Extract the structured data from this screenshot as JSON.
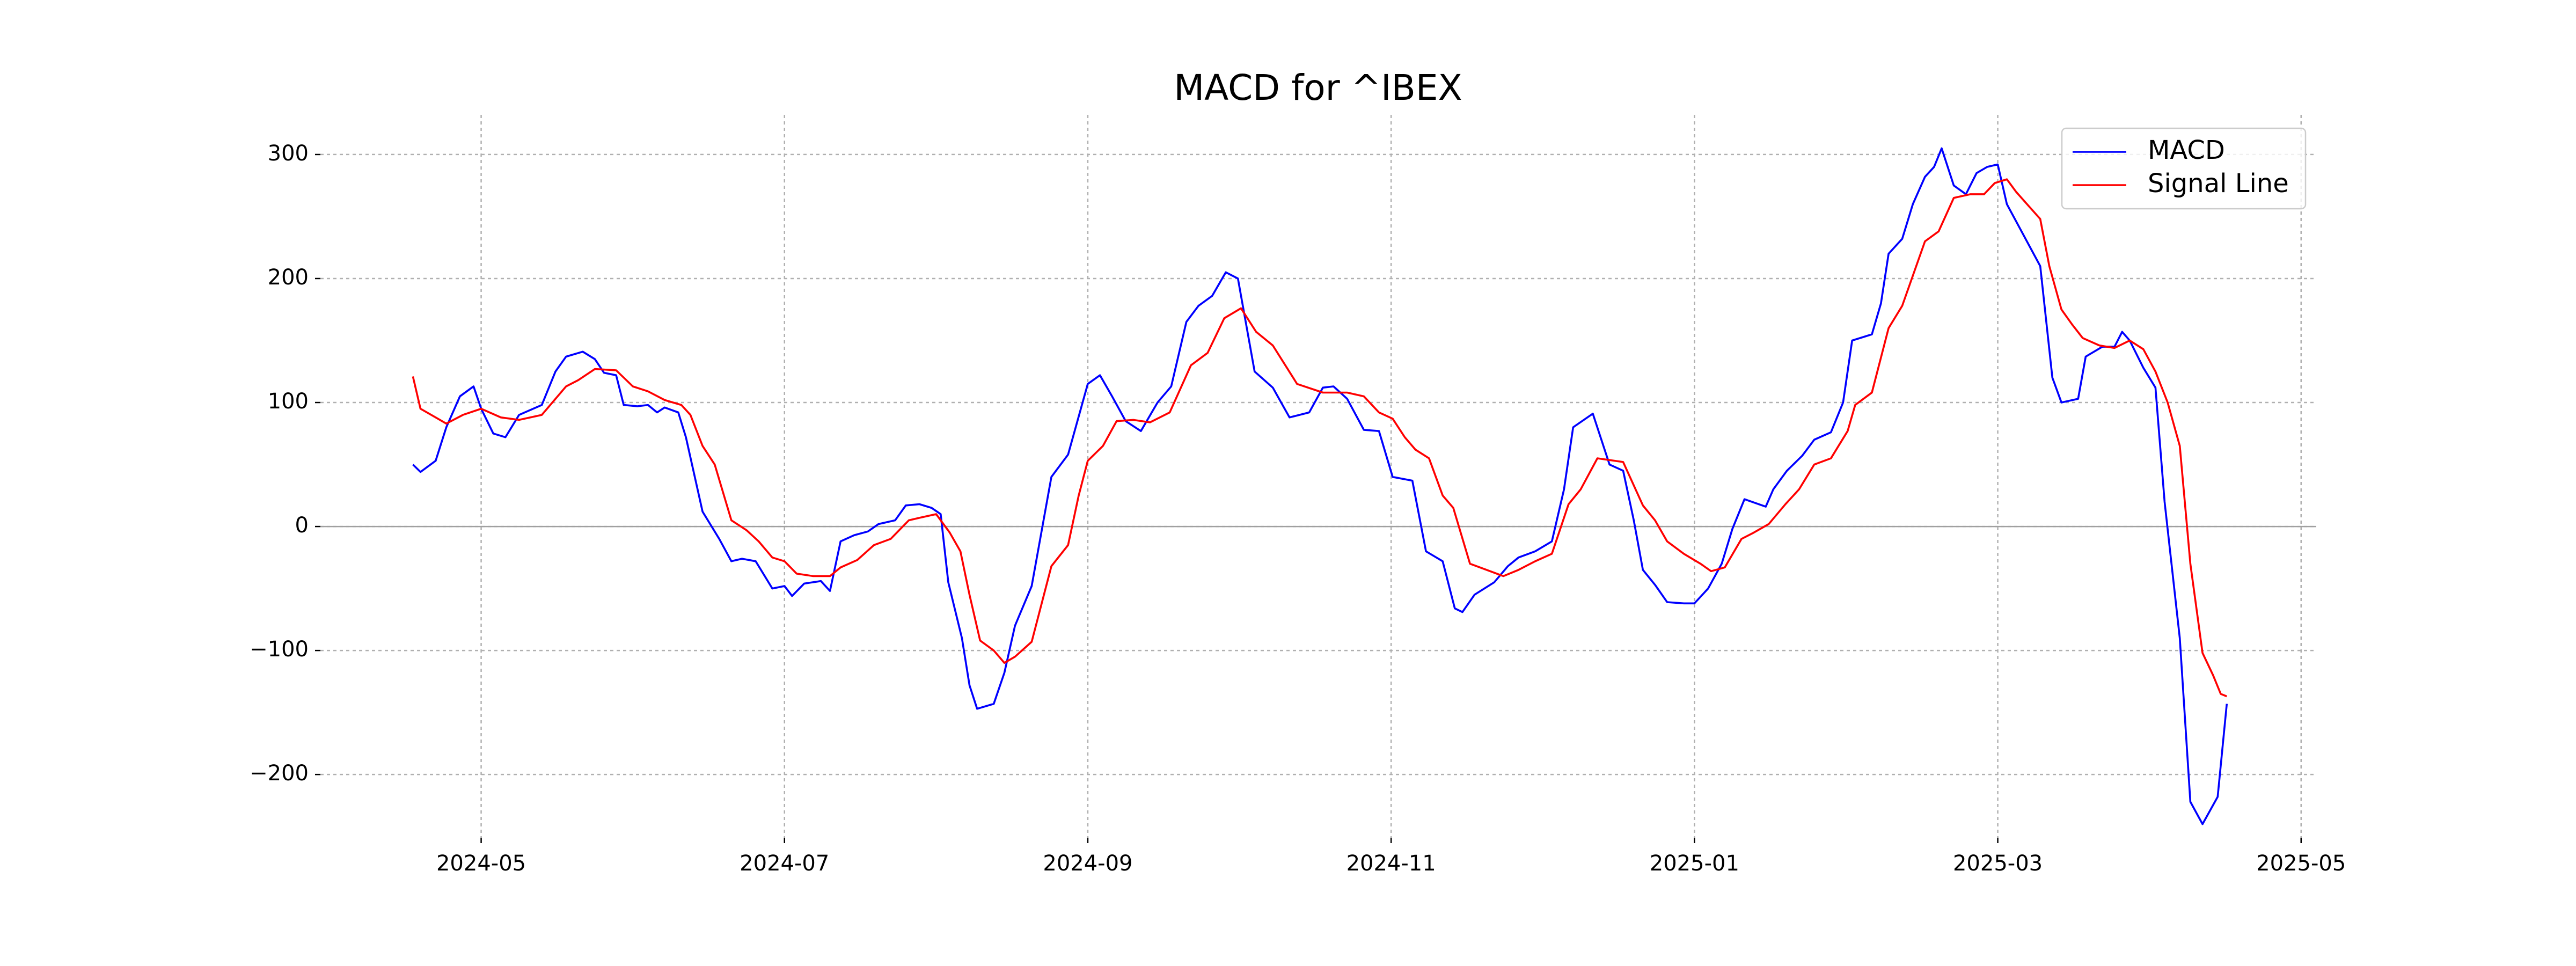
{
  "chart_data": {
    "type": "line",
    "title": "MACD for ^IBEX",
    "xlim": [
      2.94,
      16.1
    ],
    "xticks": [
      {
        "value": 4,
        "label": "2024-05"
      },
      {
        "value": 6,
        "label": "2024-07"
      },
      {
        "value": 8,
        "label": "2024-09"
      },
      {
        "value": 10,
        "label": "2024-11"
      },
      {
        "value": 12,
        "label": "2025-01"
      },
      {
        "value": 14,
        "label": "2025-03"
      },
      {
        "value": 16,
        "label": "2025-05"
      }
    ],
    "ylim": [
      -251,
      332
    ],
    "yticks": [
      {
        "value": -200,
        "label": "−200"
      },
      {
        "value": -100,
        "label": "−100"
      },
      0,
      100,
      200,
      300
    ],
    "grid": true,
    "legend": "upper right",
    "series": [
      {
        "name": "MACD",
        "color": "#0000ff",
        "x": [
          3.55,
          3.6,
          3.7,
          3.77,
          3.86,
          3.95,
          4.0,
          4.08,
          4.16,
          4.25,
          4.4,
          4.49,
          4.56,
          4.67,
          4.75,
          4.81,
          4.89,
          4.94,
          5.03,
          5.1,
          5.16,
          5.21,
          5.3,
          5.35,
          5.46,
          5.57,
          5.65,
          5.72,
          5.81,
          5.92,
          6.0,
          6.05,
          6.13,
          6.24,
          6.3,
          6.37,
          6.46,
          6.55,
          6.62,
          6.73,
          6.8,
          6.89,
          6.97,
          7.03,
          7.08,
          7.17,
          7.22,
          7.27,
          7.38,
          7.45,
          7.52,
          7.63,
          7.76,
          7.87,
          8.0,
          8.08,
          8.16,
          8.25,
          8.35,
          8.46,
          8.55,
          8.65,
          8.73,
          8.82,
          8.91,
          8.99,
          9.1,
          9.22,
          9.33,
          9.46,
          9.55,
          9.62,
          9.71,
          9.82,
          9.92,
          10.01,
          10.14,
          10.23,
          10.34,
          10.42,
          10.47,
          10.55,
          10.68,
          10.77,
          10.84,
          10.95,
          11.06,
          11.14,
          11.2,
          11.33,
          11.44,
          11.53,
          11.6,
          11.66,
          11.74,
          11.82,
          11.93,
          12.0,
          12.09,
          12.18,
          12.25,
          12.33,
          12.47,
          12.52,
          12.61,
          12.71,
          12.79,
          12.9,
          12.98,
          13.04,
          13.17,
          13.23,
          13.28,
          13.37,
          13.44,
          13.52,
          13.58,
          13.63,
          13.71,
          13.79,
          13.86,
          13.93,
          14.0,
          14.06,
          14.17,
          14.28,
          14.36,
          14.42,
          14.53,
          14.58,
          14.69,
          14.77,
          14.82,
          14.87,
          14.96,
          15.04,
          15.1,
          15.2,
          15.27,
          15.35,
          15.45,
          15.51
        ],
        "values": [
          50,
          44,
          53,
          80,
          105,
          113,
          95,
          75,
          72,
          90,
          98,
          125,
          137,
          141,
          135,
          124,
          122,
          98,
          97,
          98,
          92,
          96,
          92,
          72,
          12,
          -10,
          -28,
          -26,
          -28,
          -50,
          -48,
          -56,
          -46,
          -44,
          -52,
          -12,
          -7,
          -4,
          2,
          5,
          17,
          18,
          15,
          10,
          -45,
          -90,
          -128,
          -147,
          -143,
          -118,
          -80,
          -48,
          40,
          58,
          115,
          122,
          105,
          85,
          77,
          100,
          113,
          165,
          178,
          186,
          205,
          200,
          125,
          112,
          88,
          92,
          112,
          113,
          103,
          78,
          77,
          40,
          37,
          -20,
          -28,
          -66,
          -69,
          -55,
          -45,
          -32,
          -25,
          -20,
          -12,
          30,
          80,
          91,
          50,
          45,
          5,
          -35,
          -47,
          -61,
          -62,
          -62,
          -50,
          -30,
          -2,
          22,
          16,
          30,
          45,
          57,
          70,
          76,
          100,
          150,
          155,
          180,
          220,
          232,
          260,
          282,
          290,
          305,
          275,
          268,
          285,
          290,
          292,
          260,
          235,
          210,
          120,
          100,
          103,
          137,
          145,
          145,
          157,
          150,
          128,
          112,
          20,
          -90,
          -222,
          -240,
          -218,
          -143
        ]
      },
      {
        "name": "Signal Line",
        "color": "#ff0000",
        "x": [
          3.55,
          3.6,
          3.7,
          3.77,
          3.88,
          4.0,
          4.13,
          4.25,
          4.4,
          4.56,
          4.64,
          4.75,
          4.89,
          5.0,
          5.1,
          5.21,
          5.32,
          5.38,
          5.46,
          5.54,
          5.65,
          5.75,
          5.83,
          5.92,
          6.0,
          6.08,
          6.19,
          6.3,
          6.37,
          6.48,
          6.59,
          6.7,
          6.82,
          6.89,
          7.0,
          7.09,
          7.16,
          7.22,
          7.29,
          7.38,
          7.45,
          7.52,
          7.63,
          7.76,
          7.87,
          7.94,
          8.0,
          8.1,
          8.19,
          8.3,
          8.41,
          8.54,
          8.68,
          8.79,
          8.9,
          9.01,
          9.11,
          9.22,
          9.38,
          9.55,
          9.71,
          9.82,
          9.92,
          10.01,
          10.09,
          10.16,
          10.25,
          10.34,
          10.41,
          10.52,
          10.63,
          10.74,
          10.84,
          10.95,
          11.06,
          11.17,
          11.25,
          11.36,
          11.53,
          11.66,
          11.74,
          11.82,
          11.93,
          12.04,
          12.11,
          12.2,
          12.31,
          12.39,
          12.49,
          12.6,
          12.69,
          12.79,
          12.9,
          13.01,
          13.06,
          13.17,
          13.28,
          13.37,
          13.52,
          13.61,
          13.71,
          13.82,
          13.91,
          13.98,
          14.06,
          14.12,
          14.2,
          14.28,
          14.34,
          14.42,
          14.49,
          14.56,
          14.67,
          14.77,
          14.87,
          14.96,
          15.04,
          15.12,
          15.2,
          15.27,
          15.35,
          15.42,
          15.47,
          15.51
        ],
        "values": [
          121,
          95,
          88,
          83,
          90,
          95,
          88,
          86,
          90,
          113,
          118,
          127,
          126,
          113,
          109,
          102,
          98,
          90,
          65,
          50,
          5,
          -3,
          -12,
          -25,
          -28,
          -38,
          -40,
          -40,
          -33,
          -27,
          -15,
          -10,
          5,
          7,
          10,
          -5,
          -20,
          -55,
          -92,
          -100,
          -110,
          -105,
          -93,
          -32,
          -15,
          25,
          53,
          65,
          85,
          86,
          84,
          92,
          130,
          140,
          168,
          176,
          157,
          146,
          115,
          108,
          108,
          105,
          92,
          87,
          72,
          62,
          55,
          25,
          15,
          -30,
          -35,
          -40,
          -35,
          -28,
          -22,
          18,
          30,
          55,
          52,
          17,
          5,
          -12,
          -22,
          -30,
          -36,
          -33,
          -10,
          -5,
          2,
          18,
          30,
          50,
          55,
          77,
          98,
          108,
          160,
          178,
          230,
          238,
          265,
          268,
          268,
          277,
          280,
          270,
          259,
          248,
          210,
          175,
          163,
          152,
          146,
          144,
          150,
          143,
          125,
          100,
          65,
          -30,
          -102,
          -120,
          -135,
          -137
        ]
      }
    ]
  }
}
